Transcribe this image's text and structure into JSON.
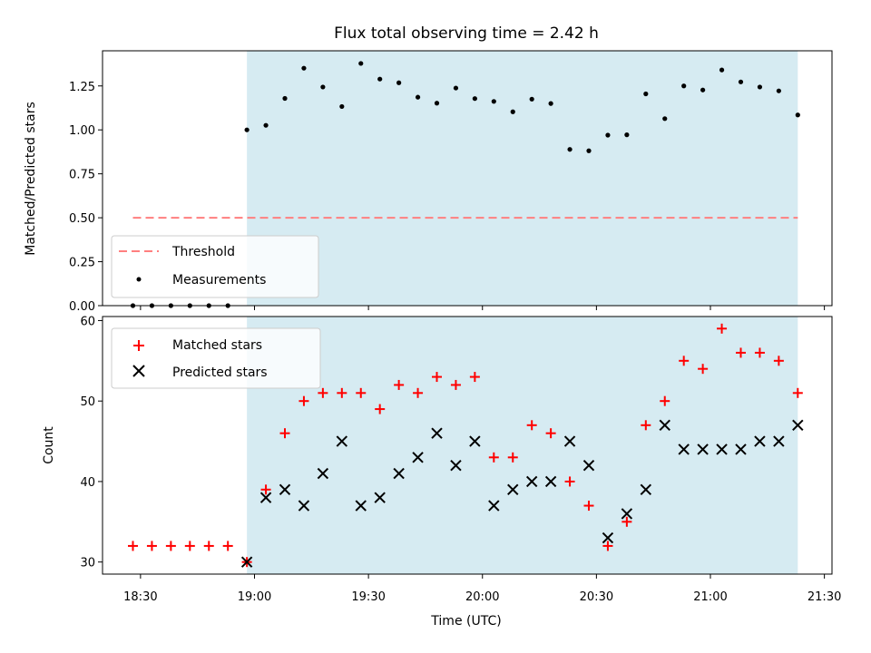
{
  "chart_data": {
    "type": "scatter",
    "title": "Flux total observing time = 2.42 h",
    "xlabel": "Time (UTC)",
    "x_unit": "minutes after 18:00 UTC",
    "xlim_time": [
      "18:20",
      "21:32"
    ],
    "xticks": [
      "18:30",
      "19:00",
      "19:30",
      "20:00",
      "20:30",
      "21:00",
      "21:30"
    ],
    "shaded_region": {
      "start": "18:58",
      "end": "21:23",
      "color": "#add8e6"
    },
    "times": [
      "18:28",
      "18:33",
      "18:38",
      "18:43",
      "18:48",
      "18:53",
      "18:58",
      "19:03",
      "19:08",
      "19:13",
      "19:18",
      "19:23",
      "19:28",
      "19:33",
      "19:38",
      "19:43",
      "19:48",
      "19:53",
      "19:58",
      "20:03",
      "20:08",
      "20:13",
      "20:18",
      "20:23",
      "20:28",
      "20:33",
      "20:38",
      "20:43",
      "20:48",
      "20:53",
      "20:58",
      "21:03",
      "21:08",
      "21:13",
      "21:18",
      "21:23"
    ],
    "panels": [
      {
        "ylabel": "Matched/Predicted stars",
        "ylim": [
          0,
          1.45
        ],
        "yticks": [
          "0.00",
          "0.25",
          "0.50",
          "0.75",
          "1.00",
          "1.25"
        ],
        "legend_position": "lower-left",
        "series": [
          {
            "name": "Threshold",
            "kind": "dashed-line",
            "color": "#ff7f7f",
            "x_range": [
              "18:28",
              "21:23"
            ],
            "value": 0.5
          },
          {
            "name": "Measurements",
            "kind": "dot",
            "color": "#000000",
            "values": [
              0,
              0,
              0,
              0,
              0,
              0,
              1.0,
              1.026,
              1.179,
              1.351,
              1.244,
              1.133,
              1.378,
              1.289,
              1.268,
              1.186,
              1.152,
              1.238,
              1.178,
              1.162,
              1.103,
              1.175,
              1.15,
              0.889,
              0.881,
              0.97,
              0.972,
              1.205,
              1.064,
              1.25,
              1.227,
              1.341,
              1.273,
              1.244,
              1.222,
              1.085
            ]
          }
        ]
      },
      {
        "ylabel": "Count",
        "ylim": [
          28.5,
          60.5
        ],
        "yticks": [
          "30",
          "40",
          "50",
          "60"
        ],
        "legend_position": "upper-left",
        "series": [
          {
            "name": "Matched stars",
            "kind": "plus",
            "color": "#ff0000",
            "values": [
              32,
              32,
              32,
              32,
              32,
              32,
              30,
              39,
              46,
              50,
              51,
              51,
              51,
              49,
              52,
              51,
              53,
              52,
              53,
              43,
              43,
              47,
              46,
              40,
              37,
              32,
              35,
              47,
              50,
              55,
              54,
              59,
              56,
              56,
              55,
              51
            ]
          },
          {
            "name": "Predicted stars",
            "kind": "cross",
            "color": "#000000",
            "values": [
              null,
              null,
              null,
              null,
              null,
              null,
              30,
              38,
              39,
              37,
              41,
              45,
              37,
              38,
              41,
              43,
              46,
              42,
              45,
              37,
              39,
              40,
              40,
              45,
              42,
              33,
              36,
              39,
              47,
              44,
              44,
              44,
              44,
              45,
              45,
              47
            ]
          }
        ]
      }
    ]
  }
}
